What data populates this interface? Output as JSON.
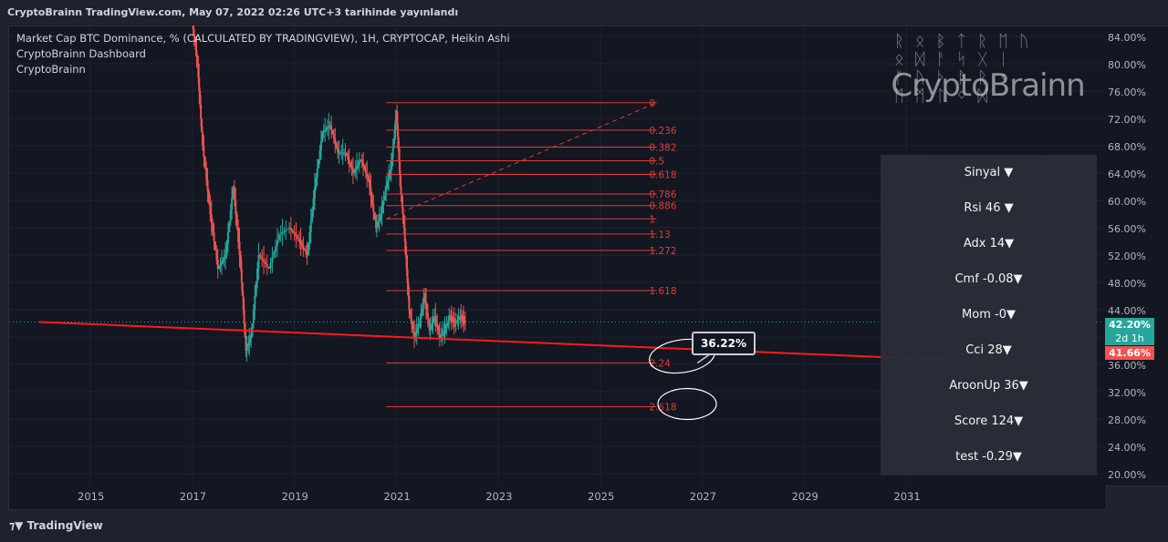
{
  "header": {
    "publish_line": "CryptoBrainn TradingView.com, May 07, 2022 02:26 UTC+3 tarihinde yayınlandı"
  },
  "legend": {
    "symbol_line": "Market Cap BTC Dominance, % (CALCULATED BY TRADINGVIEW), 1H, CRYPTOCAP, Heikin Ashi",
    "indicator_line": "CryptoBrainn Dashboard",
    "author_line": "CryptoBrainn"
  },
  "watermark": {
    "text": "CryptoBrainn"
  },
  "dashboard": {
    "rows": [
      {
        "label": "Sinyal ▼"
      },
      {
        "label": "Rsi   46  ▼"
      },
      {
        "label": "Adx   14▼"
      },
      {
        "label": "Cmf  -0.08▼"
      },
      {
        "label": "Mom   -0▼"
      },
      {
        "label": "Cci      28▼"
      },
      {
        "label": "AroonUp  36▼"
      },
      {
        "label": "Score   124▼"
      },
      {
        "label": "test   -0.29▼"
      }
    ]
  },
  "price_axis": {
    "ticks": [
      "84.00%",
      "80.00%",
      "76.00%",
      "72.00%",
      "68.00%",
      "64.00%",
      "60.00%",
      "56.00%",
      "52.00%",
      "48.00%",
      "44.00%",
      "36.00%",
      "32.00%",
      "28.00%",
      "24.00%",
      "20.00%"
    ],
    "current_price": "42.20%",
    "timeframe": "2d 1h",
    "trendline_price": "41.66%"
  },
  "time_axis": {
    "ticks": [
      "2015",
      "2017",
      "2019",
      "2021",
      "2023",
      "2025",
      "2027",
      "2029",
      "2031"
    ]
  },
  "fib": {
    "levels": [
      "0",
      "0.236",
      "0.382",
      "0.5",
      "0.618",
      "0.786",
      "0.886",
      "1",
      "1.13",
      "1.272",
      "1.618",
      "2.24",
      "2.618"
    ]
  },
  "callout": {
    "label": "36.22%"
  },
  "footer": {
    "brand": "TradingView"
  },
  "colors": {
    "background": "#131722",
    "up": "#26a69a",
    "down": "#ef5350",
    "fib": "#e53935",
    "trendline": "#ff1a1a"
  },
  "chart_data": {
    "type": "candlestick",
    "symbol": "Market Cap BTC Dominance, % (CALCULATED BY TRADINGVIEW)",
    "xlabel": "",
    "ylabel": "",
    "ylim": [
      20,
      86
    ],
    "x_ticks": [
      "2015",
      "2017",
      "2019",
      "2021",
      "2023",
      "2025",
      "2027",
      "2029",
      "2031"
    ],
    "series": [
      {
        "name": "",
        "x": [
          2017.0,
          2017.1,
          2017.2,
          2017.35,
          2017.5,
          2017.65,
          2017.8,
          2017.95,
          2018.05,
          2018.15,
          2018.3,
          2018.5,
          2018.7,
          2018.9,
          2019.1,
          2019.25,
          2019.4,
          2019.55,
          2019.7,
          2019.85,
          2020.0,
          2020.15,
          2020.3,
          2020.45,
          2020.6,
          2020.7,
          2020.8,
          2020.9,
          2021.0,
          2021.08,
          2021.15,
          2021.25,
          2021.35,
          2021.45,
          2021.55,
          2021.65,
          2021.75,
          2021.85,
          2021.95,
          2022.05,
          2022.15,
          2022.25,
          2022.35
        ],
        "y": [
          86,
          80,
          68,
          58,
          50,
          52,
          62,
          50,
          38,
          40,
          52,
          50,
          55,
          56,
          54,
          52,
          62,
          70,
          71,
          67,
          67,
          64,
          66,
          63,
          56,
          58,
          62,
          65,
          73,
          62,
          56,
          44,
          40,
          42,
          46,
          41,
          43,
          40,
          41,
          43,
          42,
          43,
          42.2
        ]
      }
    ],
    "fibonacci": {
      "levels": [
        0,
        0.236,
        0.382,
        0.5,
        0.618,
        0.786,
        0.886,
        1,
        1.13,
        1.272,
        1.618,
        2.24,
        2.618
      ]
    },
    "trendline": {
      "start": [
        2014.0,
        42.2
      ],
      "end": [
        2032.0,
        36.6
      ]
    },
    "price_labels": {
      "last": 42.2,
      "trendline": 41.66
    }
  }
}
